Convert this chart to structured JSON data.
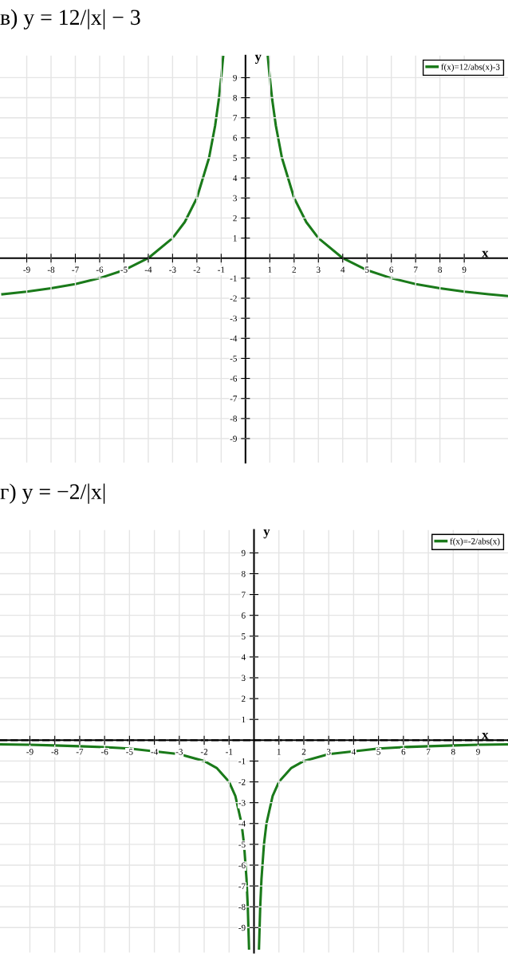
{
  "chart_data": [
    {
      "type": "line",
      "title": "в) y = 12/|x| − 3",
      "xlabel": "x",
      "ylabel": "y",
      "x": [
        -10,
        -9,
        -8,
        -7,
        -6,
        -5,
        -4,
        -3,
        -2.5,
        -2,
        -1.5,
        -1.25,
        -1.1,
        -1,
        -0.92,
        0,
        0.92,
        1,
        1.1,
        1.25,
        1.5,
        2,
        2.5,
        3,
        4,
        5,
        6,
        7,
        8,
        9,
        10,
        10.8
      ],
      "series": [
        {
          "name": "f(x)=12/abs(x)-3",
          "color": "#1a7a1a",
          "values": [
            -1.8,
            -1.67,
            -1.5,
            -1.29,
            -1,
            -0.6,
            0,
            1,
            1.8,
            3,
            5,
            6.6,
            7.9,
            9,
            10.04,
            null,
            10.04,
            9,
            7.9,
            6.6,
            5,
            3,
            1.8,
            1,
            0,
            -0.6,
            -1,
            -1.29,
            -1.5,
            -1.67,
            -1.8,
            -1.89
          ]
        }
      ],
      "xlim": [
        -10.1,
        10.8
      ],
      "ylim": [
        -10.2,
        10.1
      ],
      "xticks": [
        -9,
        -8,
        -7,
        -6,
        -5,
        -4,
        -3,
        -2,
        -1,
        1,
        2,
        3,
        4,
        5,
        6,
        7,
        8,
        9
      ],
      "yticks": [
        -9,
        -8,
        -7,
        -6,
        -5,
        -4,
        -3,
        -2,
        -1,
        1,
        2,
        3,
        4,
        5,
        6,
        7,
        8,
        9
      ],
      "grid": true,
      "legend": "top right",
      "marker": "none",
      "line_style": "solid"
    },
    {
      "type": "line",
      "title": "г) y = −2/|x|",
      "xlabel": "x",
      "ylabel": "y",
      "x": [
        -10.2,
        -9,
        -8,
        -7,
        -6,
        -5,
        -3,
        -2,
        -1.5,
        -1,
        -0.75,
        -0.5,
        -0.4,
        -0.3,
        -0.25,
        -0.2,
        0,
        0.2,
        0.25,
        0.3,
        0.4,
        0.5,
        0.75,
        1,
        1.5,
        2,
        3,
        5,
        6,
        7,
        8,
        9,
        10.2
      ],
      "series": [
        {
          "name": "f(x)=-2/abs(x)",
          "color": "#1a7a1a",
          "values": [
            -0.2,
            -0.22,
            -0.25,
            -0.29,
            -0.33,
            -0.4,
            -0.67,
            -1,
            -1.33,
            -2,
            -2.67,
            -4,
            -5,
            -6.67,
            -8,
            -10,
            null,
            -10,
            -8,
            -6.67,
            -5,
            -4,
            -2.67,
            -2,
            -1.33,
            -1,
            -0.67,
            -0.4,
            -0.33,
            -0.29,
            -0.25,
            -0.22,
            -0.2
          ]
        }
      ],
      "xlim": [
        -10.2,
        10.2
      ],
      "ylim": [
        -10.2,
        10.1
      ],
      "xticks": [
        -9,
        -8,
        -7,
        -6,
        -5,
        -4,
        -3,
        -2,
        -1,
        1,
        2,
        3,
        4,
        5,
        6,
        7,
        8,
        9
      ],
      "yticks": [
        -9,
        -8,
        -7,
        -6,
        -5,
        -4,
        -3,
        -2,
        -1,
        1,
        2,
        3,
        4,
        5,
        6,
        7,
        8,
        9
      ],
      "ref_lines": [
        {
          "axis": "y",
          "value": 0,
          "color": "#222222",
          "line_style": "dashed"
        }
      ],
      "grid": true,
      "legend": "top right",
      "marker": "none",
      "line_style": "solid"
    }
  ]
}
